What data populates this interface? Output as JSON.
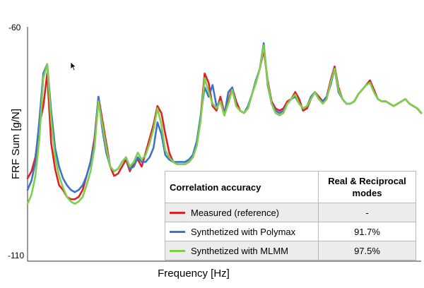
{
  "chart_data": {
    "type": "line",
    "title": "",
    "xlabel": "Frequency [Hz]",
    "ylabel": "FRF Sum [g/N]",
    "ylim": [
      -110,
      -60
    ],
    "ytick_labels": [
      "-60",
      "-110"
    ],
    "grid": false,
    "series": [
      {
        "name": "Measured (reference)",
        "color": "#e01f26",
        "y": [
          -92.5,
          -91,
          -88,
          -81,
          -77,
          -70,
          -85,
          -90.5,
          -94,
          -95,
          -96.5,
          -97,
          -97,
          -96.5,
          -95,
          -92,
          -89,
          -84,
          -75,
          -80,
          -85,
          -90,
          -92,
          -91.5,
          -90,
          -88.5,
          -91,
          -89,
          -88.5,
          -90,
          -87,
          -84,
          -81,
          -77,
          -78.5,
          -83,
          -87,
          -89,
          -89.5,
          -89.5,
          -89.5,
          -89,
          -88,
          -85,
          -79,
          -70,
          -72,
          -77,
          -78,
          -75,
          -78.5,
          -76,
          -73,
          -76,
          -78,
          -78.5,
          -77.5,
          -74.5,
          -72,
          -69,
          -65,
          -71.5,
          -76,
          -77.5,
          -78,
          -77.5,
          -76,
          -75.5,
          -74,
          -75.5,
          -78,
          -77.5,
          -75.5,
          -74,
          -75,
          -76,
          -75,
          -71.5,
          -68.5,
          -73,
          -75.5,
          -76.5,
          -76.5,
          -76,
          -74.5,
          -73.5,
          -72.5,
          -71.5,
          -73.5,
          -75.5,
          -76,
          -76,
          -76.5,
          -77,
          -76.5,
          -76,
          -75.5,
          -76.5,
          -77,
          -77.5,
          -78.5
        ]
      },
      {
        "name": "Synthetized with Polymax",
        "color": "#3d74c9",
        "y": [
          -95,
          -93,
          -89,
          -80,
          -70,
          -68,
          -78,
          -86,
          -90,
          -92.5,
          -94,
          -95,
          -95.5,
          -95,
          -94,
          -92,
          -89,
          -85,
          -75,
          -82,
          -87,
          -90,
          -91,
          -90.5,
          -89,
          -88,
          -90.5,
          -90,
          -88,
          -89,
          -89,
          -88,
          -86,
          -80.5,
          -83,
          -87.5,
          -88.5,
          -89,
          -89,
          -89,
          -89,
          -88.5,
          -87.5,
          -84.5,
          -79,
          -73,
          -75,
          -72.5,
          -77,
          -76,
          -79,
          -74,
          -73,
          -77,
          -78,
          -78.5,
          -77,
          -74.5,
          -71.5,
          -69,
          -63.5,
          -72.5,
          -76.5,
          -78,
          -78.5,
          -78,
          -76.5,
          -75.5,
          -75,
          -76.5,
          -77.5,
          -77,
          -75,
          -74,
          -75.5,
          -76,
          -75,
          -72.5,
          -69,
          -74,
          -75.5,
          -76.5,
          -76.5,
          -76,
          -74.5,
          -73.5,
          -72.5,
          -72,
          -74,
          -75.5,
          -76,
          -76,
          -76.5,
          -77,
          -76.5,
          -76,
          -75.5,
          -76.5,
          -77,
          -77.5,
          -78.5
        ]
      },
      {
        "name": "Synthetized with MLMM",
        "color": "#7fcf4a",
        "y": [
          -98,
          -96,
          -92,
          -84,
          -71,
          -68,
          -80,
          -88,
          -92,
          -94.5,
          -96.5,
          -97.5,
          -98,
          -97.5,
          -96.5,
          -94,
          -91,
          -86,
          -76,
          -81,
          -86,
          -90,
          -91,
          -90.5,
          -89,
          -88,
          -90,
          -89,
          -87,
          -88.5,
          -87.5,
          -85,
          -82,
          -77.5,
          -81,
          -86.5,
          -88,
          -89,
          -89.5,
          -89.5,
          -89.5,
          -89,
          -88,
          -85.5,
          -80,
          -71,
          -74,
          -76.5,
          -77.5,
          -76,
          -79,
          -76.5,
          -73.5,
          -77,
          -78,
          -78.5,
          -77.5,
          -74.5,
          -72,
          -69,
          -64,
          -72,
          -76.5,
          -78.5,
          -79,
          -78.5,
          -76.5,
          -75.5,
          -74.5,
          -76.5,
          -77.5,
          -77,
          -75.5,
          -74,
          -75.5,
          -76.5,
          -75.5,
          -72,
          -69,
          -73.5,
          -75.5,
          -76.5,
          -76.5,
          -76,
          -74.5,
          -73.5,
          -72.5,
          -72,
          -74,
          -75.5,
          -76,
          -76,
          -76.5,
          -77,
          -76.5,
          -76,
          -75.5,
          -76.5,
          -77,
          -77.5,
          -78.5
        ]
      }
    ],
    "legend_table": {
      "placement": "bottom-right",
      "header": {
        "label": "Correlation accuracy",
        "value": "Real & Reciprocal modes"
      },
      "rows": [
        {
          "label": "Measured (reference)",
          "value": "-",
          "color": "#e01f26"
        },
        {
          "label": "Synthetized with Polymax",
          "value": "91.7%",
          "color": "#3d74c9"
        },
        {
          "label": "Synthetized with MLMM",
          "value": "97.5%",
          "color": "#7fcf4a"
        }
      ]
    }
  },
  "cursor": {
    "icon": "mouse-pointer-icon"
  }
}
